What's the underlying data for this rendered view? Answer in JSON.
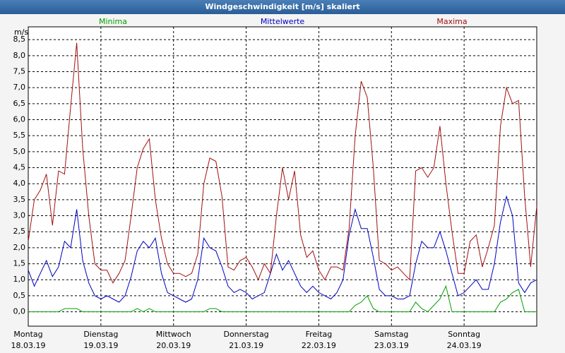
{
  "chart_data": {
    "type": "line",
    "title": "Windgeschwindigkeit [m/s] skaliert",
    "ylabel": "m/s",
    "x": [
      0,
      2,
      4,
      6,
      8,
      10,
      12,
      14,
      16,
      18,
      20,
      22,
      24,
      26,
      28,
      30,
      32,
      34,
      36,
      38,
      40,
      42,
      44,
      46,
      48,
      50,
      52,
      54,
      56,
      58,
      60,
      62,
      64,
      66,
      68,
      70,
      72,
      74,
      76,
      78,
      80,
      82,
      84,
      86,
      88,
      90,
      92,
      94,
      96,
      98,
      100,
      102,
      104,
      106,
      108,
      110,
      112,
      114,
      116,
      118,
      120,
      122,
      124,
      126,
      128,
      130,
      132,
      134,
      136,
      138,
      140,
      142,
      144,
      146,
      148,
      150,
      152,
      154,
      156,
      158,
      160,
      162,
      164,
      166,
      168
    ],
    "xlim": [
      0,
      168
    ],
    "xticks": [
      {
        "value": 0,
        "label": "Montag",
        "date": "18.03.19"
      },
      {
        "value": 24,
        "label": "Dienstag",
        "date": "19.03.19"
      },
      {
        "value": 48,
        "label": "Mittwoch",
        "date": "20.03.19"
      },
      {
        "value": 72,
        "label": "Donnerstag",
        "date": "21.03.19"
      },
      {
        "value": 96,
        "label": "Freitag",
        "date": "22.03.19"
      },
      {
        "value": 120,
        "label": "Samstag",
        "date": "23.03.19"
      },
      {
        "value": 144,
        "label": "Sonntag",
        "date": "24.03.19"
      }
    ],
    "ylim": [
      -0.45,
      8.9
    ],
    "yticks": [
      {
        "value": 0,
        "label": "0,0"
      },
      {
        "value": 0.5,
        "label": "0,5"
      },
      {
        "value": 1,
        "label": "1,0"
      },
      {
        "value": 1.5,
        "label": "1,5"
      },
      {
        "value": 2,
        "label": "2,0"
      },
      {
        "value": 2.5,
        "label": "2,5"
      },
      {
        "value": 3,
        "label": "3,0"
      },
      {
        "value": 3.5,
        "label": "3,5"
      },
      {
        "value": 4,
        "label": "4,0"
      },
      {
        "value": 4.5,
        "label": "4,5"
      },
      {
        "value": 5,
        "label": "5,0"
      },
      {
        "value": 5.5,
        "label": "5,5"
      },
      {
        "value": 6,
        "label": "6,0"
      },
      {
        "value": 6.5,
        "label": "6,5"
      },
      {
        "value": 7,
        "label": "7,0"
      },
      {
        "value": 7.5,
        "label": "7,5"
      },
      {
        "value": 8,
        "label": "8,0"
      },
      {
        "value": 8.5,
        "label": "8,5"
      }
    ],
    "grid": true,
    "series": [
      {
        "name": "Minima",
        "color": "#00a000",
        "values": [
          0,
          0,
          0,
          0,
          0,
          0,
          0.1,
          0.1,
          0.1,
          0,
          0,
          0,
          0,
          0,
          0,
          0,
          0,
          0,
          0.1,
          0,
          0.1,
          0,
          0,
          0,
          0,
          0,
          0,
          0,
          0,
          0,
          0.1,
          0.1,
          0,
          0,
          0,
          0,
          0,
          0,
          0,
          0,
          0,
          0,
          0,
          0,
          0,
          0,
          0,
          0,
          0,
          0,
          0,
          0,
          0,
          0,
          0.2,
          0.3,
          0.5,
          0.1,
          0,
          0,
          0,
          0,
          0,
          0,
          0.3,
          0.1,
          0,
          0.2,
          0.4,
          0.8,
          0,
          0,
          0,
          0,
          0,
          0,
          0,
          0,
          0.3,
          0.4,
          0.6,
          0.7,
          0,
          0,
          0
        ]
      },
      {
        "name": "Mittelwerte",
        "color": "#0000c0",
        "values": [
          1.3,
          0.8,
          1.2,
          1.6,
          1.1,
          1.4,
          2.2,
          2.0,
          3.2,
          1.6,
          0.9,
          0.5,
          0.4,
          0.5,
          0.4,
          0.3,
          0.5,
          1.1,
          1.9,
          2.2,
          2.0,
          2.3,
          1.2,
          0.6,
          0.5,
          0.4,
          0.3,
          0.4,
          1.0,
          2.3,
          2.0,
          1.9,
          1.4,
          0.8,
          0.6,
          0.7,
          0.6,
          0.4,
          0.5,
          0.6,
          1.2,
          1.8,
          1.3,
          1.6,
          1.2,
          0.8,
          0.6,
          0.8,
          0.6,
          0.5,
          0.4,
          0.6,
          1.0,
          2.4,
          3.2,
          2.6,
          2.6,
          1.7,
          0.7,
          0.5,
          0.5,
          0.4,
          0.4,
          0.5,
          1.5,
          2.2,
          2.0,
          2.0,
          2.5,
          1.9,
          1.2,
          0.5,
          0.6,
          0.8,
          1.0,
          0.7,
          0.7,
          1.5,
          2.8,
          3.6,
          3.0,
          0.9,
          0.6,
          0.9,
          1.0
        ]
      },
      {
        "name": "Maxima",
        "color": "#a01010",
        "values": [
          2.2,
          3.5,
          3.8,
          4.3,
          2.7,
          4.4,
          4.3,
          6.4,
          8.4,
          5.1,
          3.0,
          1.5,
          1.3,
          1.3,
          0.9,
          1.2,
          1.6,
          3.0,
          4.5,
          5.1,
          5.4,
          3.5,
          2.3,
          1.5,
          1.2,
          1.2,
          1.1,
          1.2,
          1.8,
          4.0,
          4.8,
          4.7,
          3.6,
          1.4,
          1.3,
          1.6,
          1.7,
          1.4,
          1.0,
          1.5,
          1.2,
          3.0,
          4.5,
          3.5,
          4.4,
          2.4,
          1.7,
          1.9,
          1.3,
          1.0,
          1.4,
          1.4,
          1.3,
          2.6,
          5.5,
          7.2,
          6.7,
          4.5,
          1.6,
          1.5,
          1.3,
          1.4,
          1.2,
          1.0,
          4.4,
          4.5,
          4.2,
          4.5,
          5.8,
          4.0,
          2.5,
          1.2,
          1.2,
          2.2,
          2.4,
          1.4,
          2.0,
          2.7,
          5.8,
          7.0,
          6.5,
          6.6,
          3.6,
          1.4,
          3.3
        ]
      }
    ]
  }
}
